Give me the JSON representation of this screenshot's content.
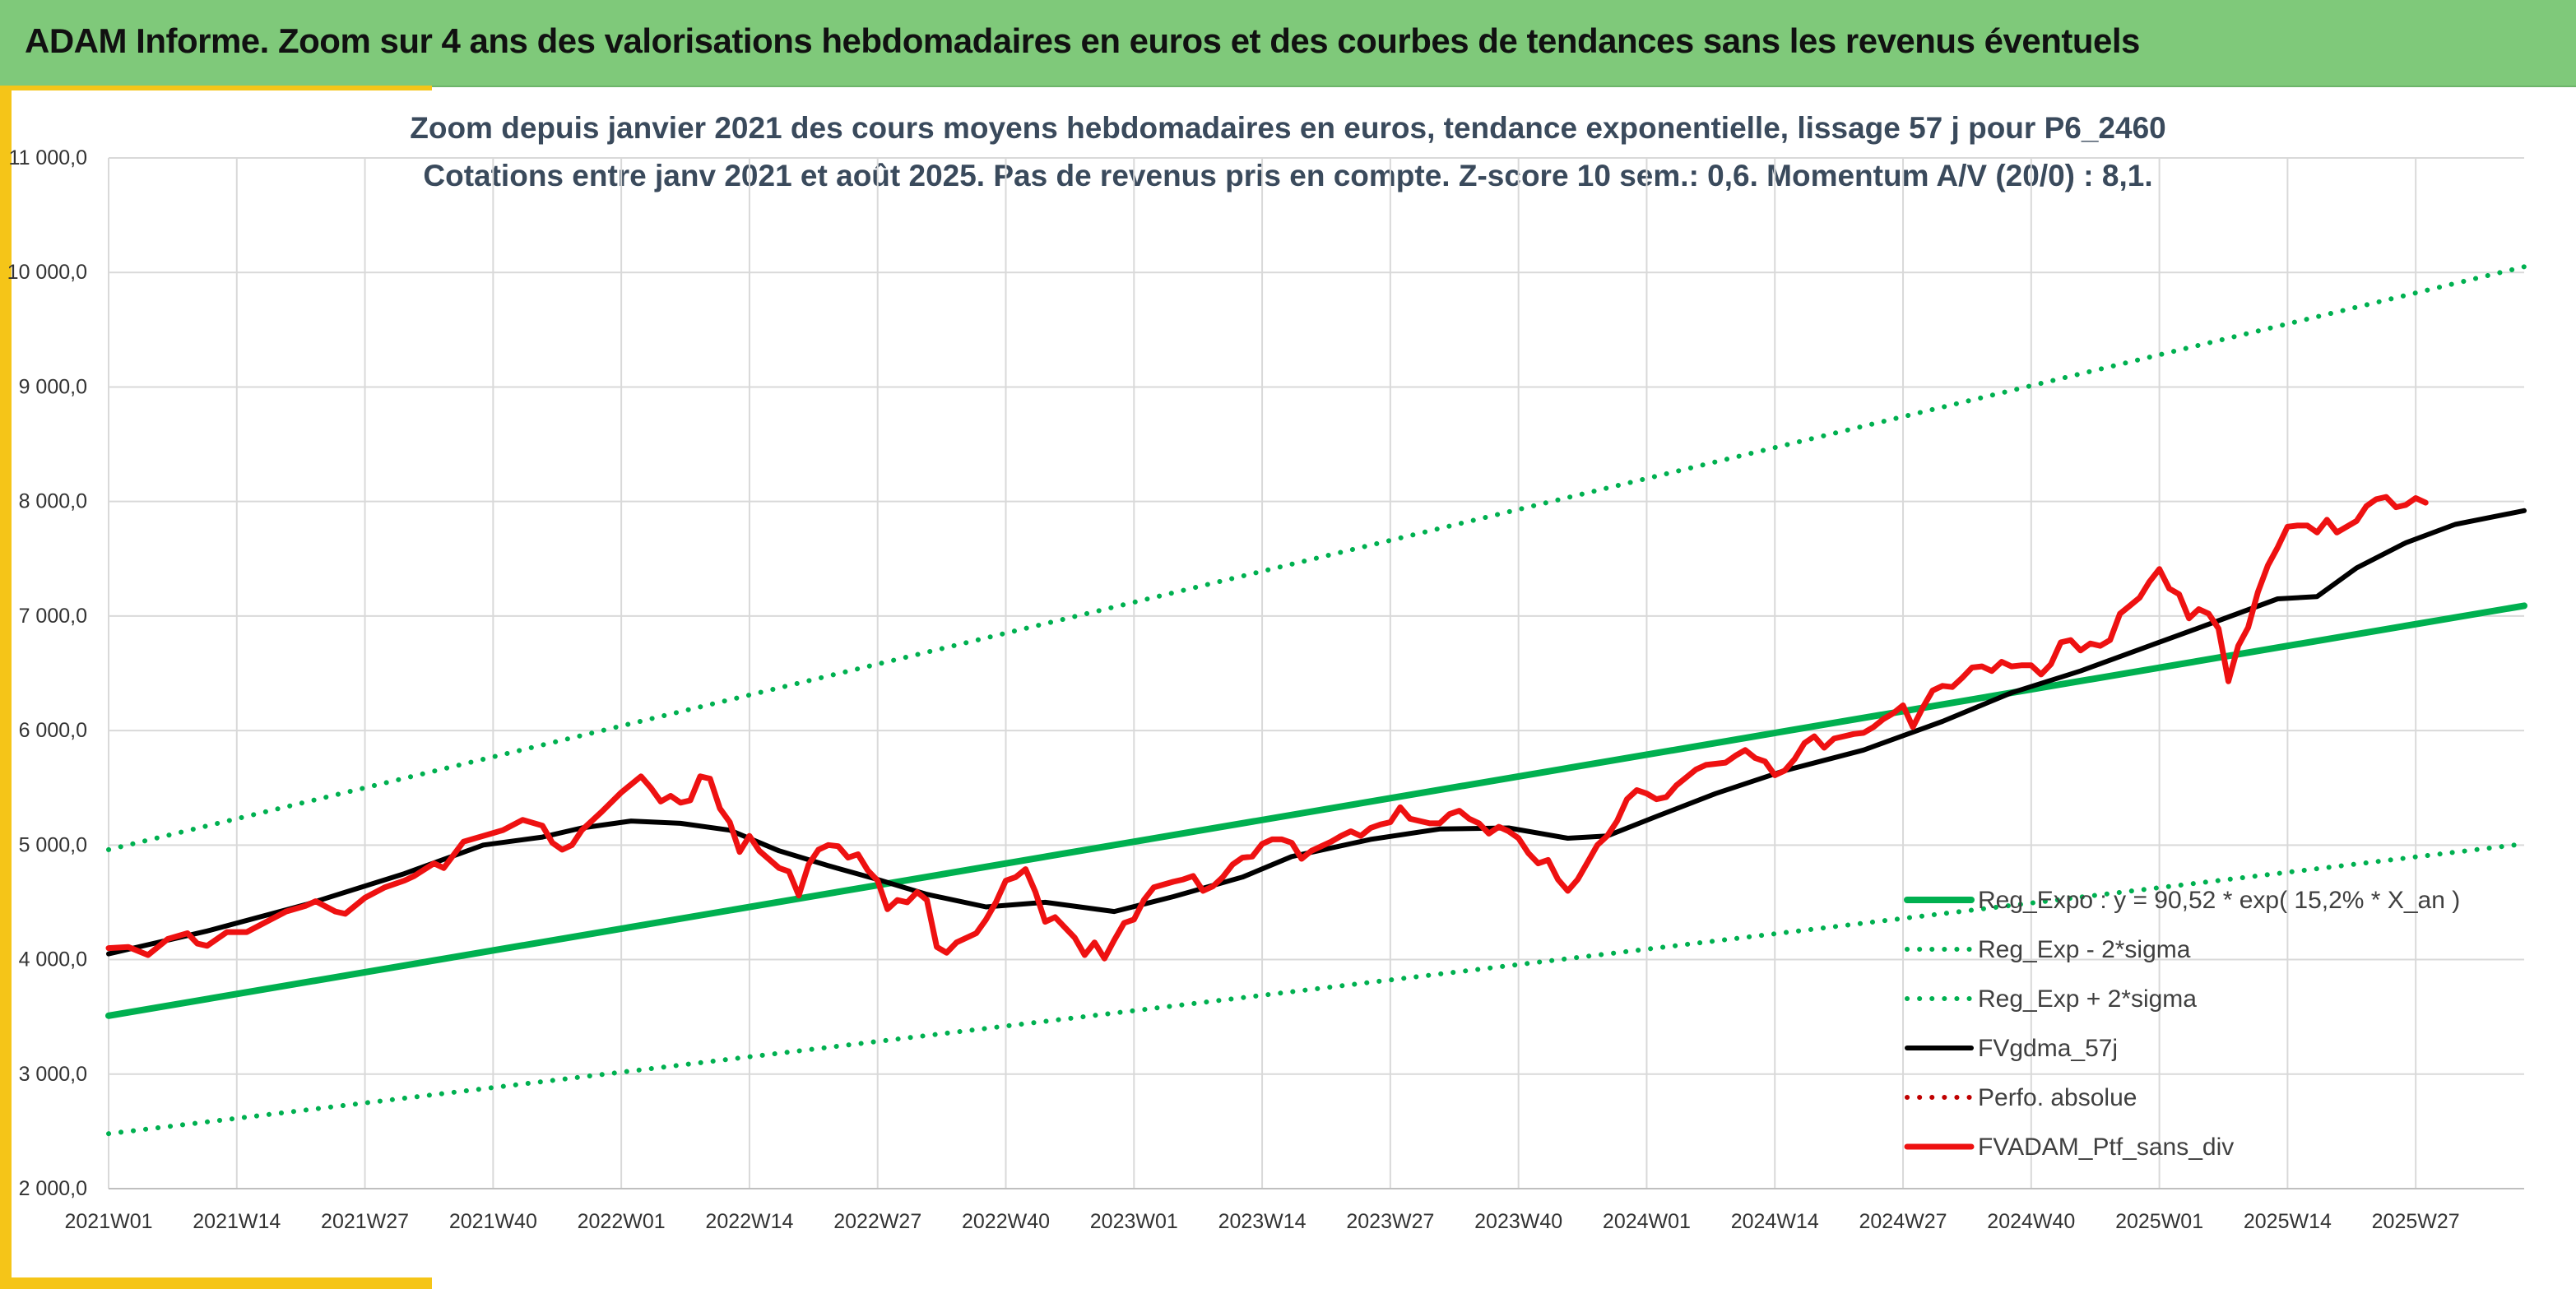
{
  "banner": {
    "title": "ADAM Informe. Zoom sur 4 ans des valorisations hebdomadaires en euros et des courbes de tendances sans les revenus éventuels"
  },
  "colors": {
    "banner_bg": "#7fc97a",
    "frame_accent": "#f5c518",
    "trend_green": "#00b050",
    "smooth_black": "#000000",
    "portfolio_red": "#ee1111",
    "perfo_red": "#c00000"
  },
  "chart_data": {
    "type": "line",
    "title_line1": "Zoom depuis janvier 2021 des cours moyens hebdomadaires en euros, tendance exponentielle, lissage 57 j pour P6_2460",
    "title_line2": "Cotations entre janv 2021 et août 2025. Pas de revenus pris en compte. Z-score 10 sem.: 0,6. Momentum A/V (20/0) : 8,1.",
    "ylim": [
      2000,
      11000
    ],
    "y_ticks": [
      "2 000,0",
      "3 000,0",
      "4 000,0",
      "5 000,0",
      "6 000,0",
      "7 000,0",
      "8 000,0",
      "9 000,0",
      "10 000,0",
      "11 000,0"
    ],
    "x_ticks": [
      "2021W01",
      "2021W14",
      "2021W27",
      "2021W40",
      "2022W01",
      "2022W14",
      "2022W27",
      "2022W40",
      "2023W01",
      "2023W14",
      "2023W27",
      "2023W40",
      "2024W01",
      "2024W14",
      "2024W27",
      "2024W40",
      "2025W01",
      "2025W14",
      "2025W27"
    ],
    "x_range_weeks": [
      0,
      245
    ],
    "grid": true,
    "legend_position": "bottom-right",
    "series": [
      {
        "name": "Reg_Expo : y = 90,52 * exp( 15,2% *  X_an )",
        "style": "solid",
        "color": "#00b050",
        "points": [
          [
            0,
            3510
          ],
          [
            245,
            7090
          ]
        ]
      },
      {
        "name": "Reg_Exp - 2*sigma",
        "style": "dotted",
        "color": "#00b050",
        "points": [
          [
            0,
            2480
          ],
          [
            245,
            5010
          ]
        ]
      },
      {
        "name": "Reg_Exp + 2*sigma",
        "style": "dotted",
        "color": "#00b050",
        "points": [
          [
            0,
            4960
          ],
          [
            245,
            10050
          ]
        ]
      },
      {
        "name": "FVgdma_57j",
        "style": "solid",
        "color": "#000000",
        "points": [
          [
            0,
            4050
          ],
          [
            10,
            4250
          ],
          [
            20,
            4480
          ],
          [
            30,
            4750
          ],
          [
            38,
            5000
          ],
          [
            44,
            5070
          ],
          [
            48,
            5150
          ],
          [
            53,
            5210
          ],
          [
            58,
            5190
          ],
          [
            63,
            5130
          ],
          [
            68,
            4950
          ],
          [
            73,
            4820
          ],
          [
            78,
            4700
          ],
          [
            83,
            4570
          ],
          [
            89,
            4460
          ],
          [
            95,
            4500
          ],
          [
            102,
            4420
          ],
          [
            108,
            4550
          ],
          [
            115,
            4720
          ],
          [
            120,
            4900
          ],
          [
            128,
            5050
          ],
          [
            135,
            5140
          ],
          [
            142,
            5150
          ],
          [
            148,
            5060
          ],
          [
            152,
            5080
          ],
          [
            157,
            5250
          ],
          [
            163,
            5450
          ],
          [
            170,
            5650
          ],
          [
            178,
            5830
          ],
          [
            186,
            6080
          ],
          [
            193,
            6330
          ],
          [
            200,
            6520
          ],
          [
            207,
            6740
          ],
          [
            214,
            6960
          ],
          [
            220,
            7150
          ],
          [
            224,
            7170
          ],
          [
            228,
            7420
          ],
          [
            233,
            7640
          ],
          [
            238,
            7800
          ],
          [
            245,
            7920
          ]
        ]
      },
      {
        "name": "Perfo. absolue",
        "style": "dotted",
        "color": "#c00000",
        "points": []
      },
      {
        "name": "FVADAM_Ptf_sans_div",
        "style": "solid",
        "color": "#ee1111",
        "points": [
          [
            0,
            4100
          ],
          [
            2,
            4110
          ],
          [
            4,
            4040
          ],
          [
            6,
            4180
          ],
          [
            8,
            4230
          ],
          [
            9,
            4140
          ],
          [
            10,
            4120
          ],
          [
            12,
            4240
          ],
          [
            14,
            4240
          ],
          [
            16,
            4330
          ],
          [
            18,
            4420
          ],
          [
            20,
            4470
          ],
          [
            21,
            4510
          ],
          [
            23,
            4420
          ],
          [
            24,
            4400
          ],
          [
            26,
            4540
          ],
          [
            28,
            4630
          ],
          [
            30,
            4690
          ],
          [
            31,
            4730
          ],
          [
            33,
            4840
          ],
          [
            34,
            4800
          ],
          [
            36,
            5030
          ],
          [
            38,
            5080
          ],
          [
            40,
            5130
          ],
          [
            42,
            5220
          ],
          [
            44,
            5170
          ],
          [
            45,
            5020
          ],
          [
            46,
            4960
          ],
          [
            47,
            5000
          ],
          [
            48,
            5130
          ],
          [
            50,
            5290
          ],
          [
            52,
            5460
          ],
          [
            54,
            5600
          ],
          [
            55,
            5500
          ],
          [
            56,
            5380
          ],
          [
            57,
            5430
          ],
          [
            58,
            5370
          ],
          [
            59,
            5390
          ],
          [
            60,
            5600
          ],
          [
            61,
            5580
          ],
          [
            62,
            5320
          ],
          [
            63,
            5200
          ],
          [
            64,
            4940
          ],
          [
            65,
            5080
          ],
          [
            66,
            4950
          ],
          [
            68,
            4800
          ],
          [
            69,
            4770
          ],
          [
            70,
            4560
          ],
          [
            71,
            4830
          ],
          [
            72,
            4960
          ],
          [
            73,
            5000
          ],
          [
            74,
            4990
          ],
          [
            75,
            4890
          ],
          [
            76,
            4920
          ],
          [
            77,
            4780
          ],
          [
            78,
            4690
          ],
          [
            79,
            4440
          ],
          [
            80,
            4520
          ],
          [
            81,
            4500
          ],
          [
            82,
            4590
          ],
          [
            83,
            4520
          ],
          [
            84,
            4110
          ],
          [
            85,
            4060
          ],
          [
            86,
            4150
          ],
          [
            88,
            4230
          ],
          [
            89,
            4350
          ],
          [
            90,
            4500
          ],
          [
            91,
            4690
          ],
          [
            92,
            4720
          ],
          [
            93,
            4790
          ],
          [
            94,
            4590
          ],
          [
            95,
            4330
          ],
          [
            96,
            4370
          ],
          [
            97,
            4280
          ],
          [
            98,
            4190
          ],
          [
            99,
            4040
          ],
          [
            100,
            4150
          ],
          [
            101,
            4010
          ],
          [
            102,
            4170
          ],
          [
            103,
            4320
          ],
          [
            104,
            4350
          ],
          [
            105,
            4520
          ],
          [
            106,
            4630
          ],
          [
            108,
            4680
          ],
          [
            109,
            4700
          ],
          [
            110,
            4730
          ],
          [
            111,
            4600
          ],
          [
            112,
            4640
          ],
          [
            113,
            4720
          ],
          [
            114,
            4830
          ],
          [
            115,
            4890
          ],
          [
            116,
            4900
          ],
          [
            117,
            5010
          ],
          [
            118,
            5050
          ],
          [
            119,
            5050
          ],
          [
            120,
            5020
          ],
          [
            121,
            4880
          ],
          [
            122,
            4950
          ],
          [
            124,
            5030
          ],
          [
            125,
            5080
          ],
          [
            126,
            5120
          ],
          [
            127,
            5080
          ],
          [
            128,
            5150
          ],
          [
            129,
            5180
          ],
          [
            130,
            5200
          ],
          [
            131,
            5330
          ],
          [
            132,
            5230
          ],
          [
            133,
            5210
          ],
          [
            134,
            5190
          ],
          [
            135,
            5190
          ],
          [
            136,
            5270
          ],
          [
            137,
            5300
          ],
          [
            138,
            5230
          ],
          [
            139,
            5190
          ],
          [
            140,
            5100
          ],
          [
            141,
            5160
          ],
          [
            142,
            5120
          ],
          [
            143,
            5060
          ],
          [
            144,
            4930
          ],
          [
            145,
            4840
          ],
          [
            146,
            4870
          ],
          [
            147,
            4700
          ],
          [
            148,
            4600
          ],
          [
            149,
            4700
          ],
          [
            150,
            4850
          ],
          [
            151,
            5000
          ],
          [
            152,
            5080
          ],
          [
            153,
            5210
          ],
          [
            154,
            5400
          ],
          [
            155,
            5480
          ],
          [
            156,
            5450
          ],
          [
            157,
            5400
          ],
          [
            158,
            5420
          ],
          [
            159,
            5520
          ],
          [
            160,
            5590
          ],
          [
            161,
            5660
          ],
          [
            162,
            5700
          ],
          [
            163,
            5710
          ],
          [
            164,
            5720
          ],
          [
            165,
            5780
          ],
          [
            166,
            5830
          ],
          [
            167,
            5760
          ],
          [
            168,
            5730
          ],
          [
            169,
            5610
          ],
          [
            170,
            5650
          ],
          [
            171,
            5750
          ],
          [
            172,
            5890
          ],
          [
            173,
            5950
          ],
          [
            174,
            5850
          ],
          [
            175,
            5930
          ],
          [
            176,
            5950
          ],
          [
            177,
            5970
          ],
          [
            178,
            5980
          ],
          [
            179,
            6030
          ],
          [
            180,
            6100
          ],
          [
            181,
            6150
          ],
          [
            182,
            6220
          ],
          [
            183,
            6030
          ],
          [
            184,
            6200
          ],
          [
            185,
            6350
          ],
          [
            186,
            6390
          ],
          [
            187,
            6380
          ],
          [
            188,
            6460
          ],
          [
            189,
            6550
          ],
          [
            190,
            6560
          ],
          [
            191,
            6520
          ],
          [
            192,
            6600
          ],
          [
            193,
            6560
          ],
          [
            194,
            6570
          ],
          [
            195,
            6570
          ],
          [
            196,
            6490
          ],
          [
            197,
            6580
          ],
          [
            198,
            6770
          ],
          [
            199,
            6790
          ],
          [
            200,
            6700
          ],
          [
            201,
            6760
          ],
          [
            202,
            6740
          ],
          [
            203,
            6790
          ],
          [
            204,
            7020
          ],
          [
            205,
            7090
          ],
          [
            206,
            7160
          ],
          [
            207,
            7300
          ],
          [
            208,
            7410
          ],
          [
            209,
            7240
          ],
          [
            210,
            7190
          ],
          [
            211,
            6980
          ],
          [
            212,
            7060
          ],
          [
            213,
            7020
          ],
          [
            214,
            6890
          ],
          [
            215,
            6430
          ],
          [
            216,
            6740
          ],
          [
            217,
            6900
          ],
          [
            218,
            7210
          ],
          [
            219,
            7440
          ],
          [
            220,
            7600
          ],
          [
            221,
            7780
          ],
          [
            222,
            7790
          ],
          [
            223,
            7790
          ],
          [
            224,
            7730
          ],
          [
            225,
            7840
          ],
          [
            226,
            7730
          ],
          [
            227,
            7780
          ],
          [
            228,
            7830
          ],
          [
            229,
            7960
          ],
          [
            230,
            8020
          ],
          [
            231,
            8040
          ],
          [
            232,
            7950
          ],
          [
            233,
            7970
          ],
          [
            234,
            8030
          ],
          [
            235,
            7990
          ]
        ]
      }
    ]
  }
}
